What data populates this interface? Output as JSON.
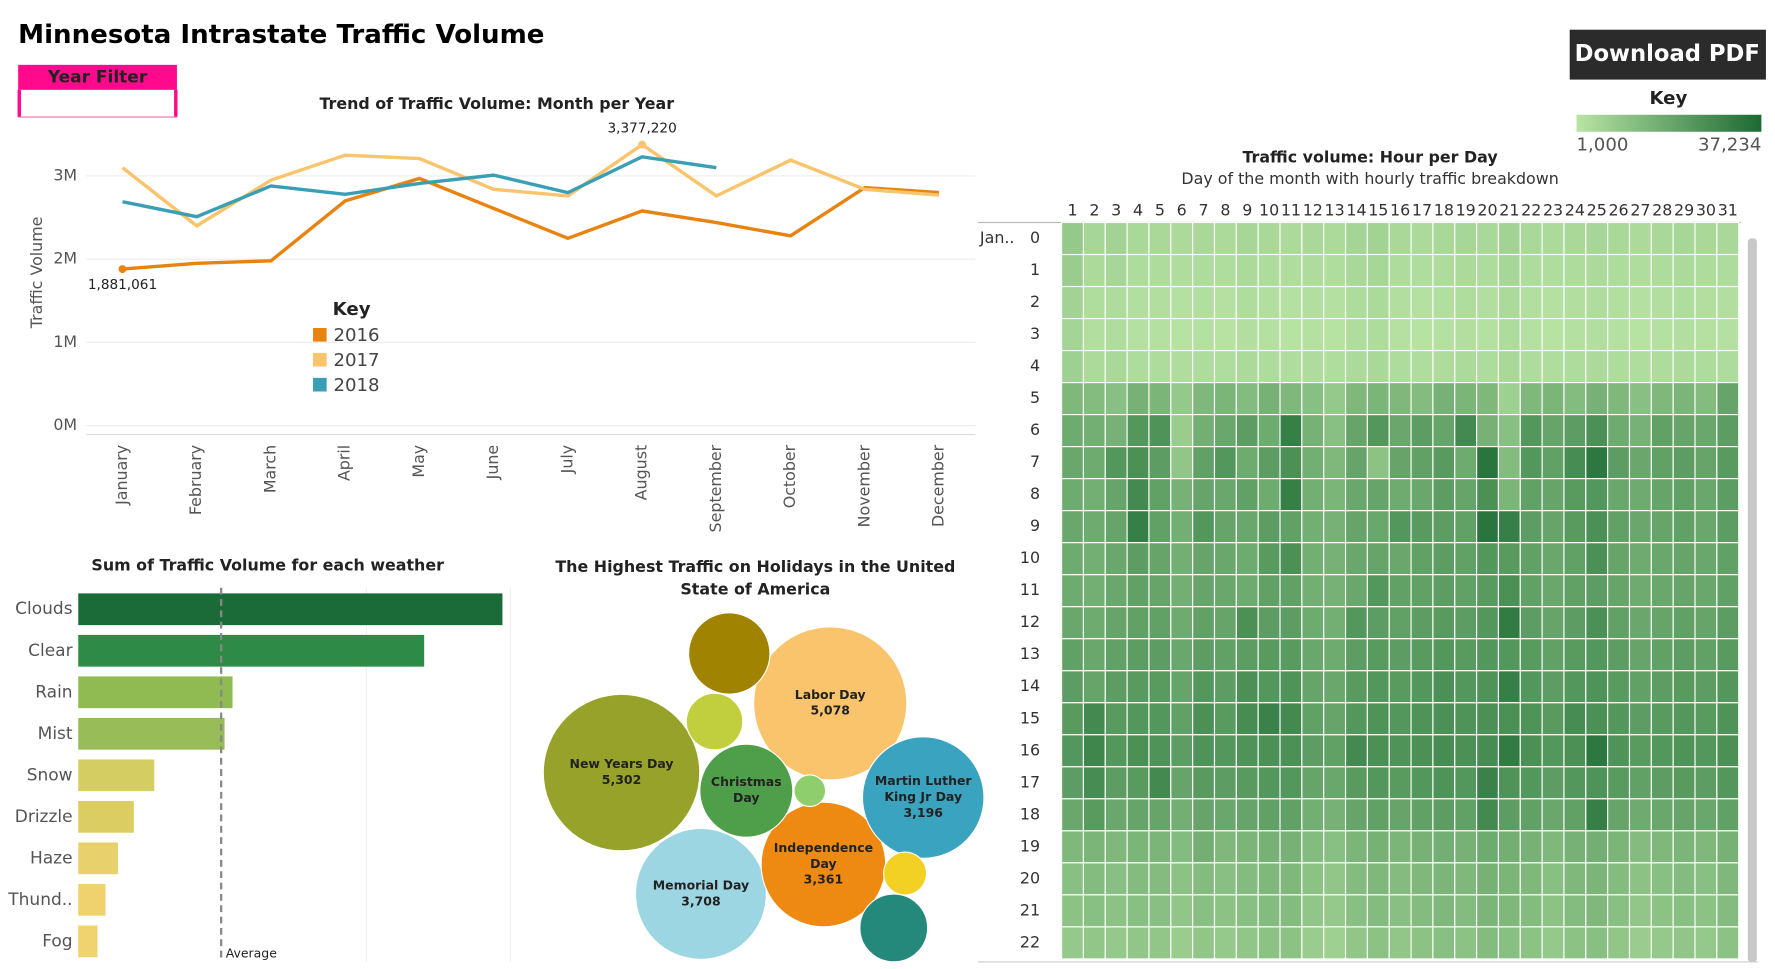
{
  "header": {
    "title": "Minnesota Intrastate Traffic Volume",
    "year_filter": "Year Filter",
    "download": "Download PDF"
  },
  "chart_data": [
    {
      "type": "line",
      "title": "Trend of Traffic Volume: Month per Year",
      "y_label": "Traffic Volume",
      "categories": [
        "January",
        "February",
        "March",
        "April",
        "May",
        "June",
        "July",
        "August",
        "September",
        "October",
        "November",
        "December"
      ],
      "series": [
        {
          "name": "2016",
          "color": "#e8830f",
          "values": [
            1881061,
            1950000,
            1980000,
            2700000,
            2970000,
            2610000,
            2250000,
            2580000,
            2440000,
            2280000,
            2860000,
            2800000
          ],
          "value_labels": [
            "1,881,061",
            null,
            null,
            null,
            null,
            null,
            null,
            null,
            null,
            null,
            null,
            null
          ]
        },
        {
          "name": "2017",
          "color": "#f9c46b",
          "values": [
            3100000,
            2400000,
            2950000,
            3250000,
            3210000,
            2840000,
            2760000,
            3377220,
            2760000,
            3190000,
            2840000,
            2770000
          ],
          "value_labels": [
            null,
            null,
            null,
            null,
            null,
            null,
            null,
            "3,377,220",
            null,
            null,
            null,
            null
          ]
        },
        {
          "name": "2018",
          "color": "#3a9fb5",
          "values": [
            2690000,
            2510000,
            2880000,
            2780000,
            2910000,
            3010000,
            2800000,
            3230000,
            3100000,
            null,
            null,
            null
          ]
        }
      ],
      "ylim": [
        0,
        3500000
      ],
      "yticks": [
        {
          "value": 0,
          "label": "0M"
        },
        {
          "value": 1000000,
          "label": "1M"
        },
        {
          "value": 2000000,
          "label": "2M"
        },
        {
          "value": 3000000,
          "label": "3M"
        }
      ],
      "grid": true,
      "legend_title": "Key"
    },
    {
      "type": "bar",
      "orientation": "horizontal",
      "title": "Sum of Traffic Volume for each weather",
      "categories": [
        "Clouds",
        "Clear",
        "Rain",
        "Mist",
        "Snow",
        "Drizzle",
        "Haze",
        "Thund..",
        "Fog"
      ],
      "values": [
        374,
        305,
        136,
        129,
        67,
        49,
        35,
        24,
        17
      ],
      "colors": [
        "#1a6b37",
        "#2e8b47",
        "#8fbb52",
        "#98bd58",
        "#d4ce62",
        "#dccd62",
        "#e8d06c",
        "#efd26e",
        "#f0d36f"
      ],
      "reference_line": {
        "label": "Average",
        "value": 126
      }
    },
    {
      "type": "bubble",
      "title": "The Highest Traffic on  Holidays in the United State of America",
      "categories": [
        "New Years Day",
        "Labor Day",
        "Memorial Day",
        "Independence Day",
        "Martin Luther King Jr Day",
        "Christmas Day",
        null,
        null,
        null,
        null,
        null
      ],
      "values": [
        5302,
        5078,
        3708,
        3361,
        3196,
        1872,
        1431,
        690,
        216,
        400,
        994
      ],
      "value_labels": [
        "5,302",
        "5,078",
        "3,708",
        "3,361",
        "3,196",
        null,
        null,
        null,
        null,
        null,
        null
      ],
      "colors": [
        "#97a22a",
        "#f9c46b",
        "#9dd6e3",
        "#ee8a12",
        "#3aa3bf",
        "#4f9e4a",
        "#a08300",
        "#c1cf3f",
        "#8fce6c",
        "#f2d024",
        "#24887a"
      ]
    },
    {
      "type": "heatmap",
      "title": "Traffic volume: Hour per Day",
      "subtitle": "Day of the month with hourly traffic breakdown",
      "row_group": "Jan..",
      "legend_title": "Key",
      "color_range": [
        {
          "value": 1000,
          "label": "1,000"
        },
        {
          "value": 37234,
          "label": "37,234"
        }
      ],
      "colors": [
        "#b8e4a4",
        "#1b6a33"
      ],
      "x": [
        1,
        2,
        3,
        4,
        5,
        6,
        7,
        8,
        9,
        10,
        11,
        12,
        13,
        14,
        15,
        16,
        17,
        18,
        19,
        20,
        21,
        22,
        23,
        24,
        25,
        26,
        27,
        28,
        29,
        30,
        31
      ],
      "y": [
        0,
        1,
        2,
        3,
        4,
        5,
        6,
        7,
        8,
        9,
        10,
        11,
        12,
        13,
        14,
        15,
        16,
        17,
        18,
        19,
        20,
        21,
        22
      ],
      "values": [
        [
          9000,
          5000,
          6000,
          4500,
          4500,
          4000,
          4500,
          4000,
          5000,
          4500,
          4000,
          4500,
          4000,
          5500,
          6000,
          4500,
          4000,
          4500,
          5000,
          4500,
          6000,
          4500,
          4000,
          4500,
          5000,
          4500,
          4000,
          4500,
          5000,
          4500,
          4500
        ],
        [
          8000,
          4000,
          5000,
          3500,
          3500,
          3000,
          3500,
          3000,
          4000,
          3500,
          3000,
          3500,
          3000,
          4500,
          5000,
          3500,
          3000,
          3500,
          4000,
          3500,
          5000,
          3500,
          3000,
          3500,
          4000,
          3500,
          3000,
          3500,
          4000,
          3500,
          3500
        ],
        [
          6000,
          3000,
          3500,
          2500,
          2500,
          2000,
          2500,
          2000,
          3000,
          2500,
          2000,
          2500,
          2000,
          3500,
          4000,
          2500,
          2000,
          2500,
          3000,
          2500,
          4000,
          2500,
          2000,
          2500,
          3000,
          2500,
          2000,
          2500,
          3000,
          2500,
          2500
        ],
        [
          5500,
          2500,
          3000,
          2000,
          2000,
          1500,
          2000,
          1500,
          2500,
          2000,
          1500,
          2000,
          1500,
          3000,
          3500,
          2000,
          1500,
          2000,
          2500,
          2000,
          3500,
          2000,
          1500,
          2000,
          2500,
          2000,
          1500,
          2000,
          2500,
          2000,
          2000
        ],
        [
          7000,
          4000,
          4500,
          3500,
          3500,
          3000,
          3500,
          3000,
          4000,
          3500,
          3000,
          3500,
          3000,
          4000,
          4500,
          3500,
          3000,
          3500,
          4000,
          3500,
          4500,
          3500,
          3000,
          3500,
          4000,
          3500,
          3000,
          3500,
          4000,
          3500,
          3500
        ],
        [
          14000,
          13000,
          12000,
          16000,
          15000,
          9000,
          14000,
          15000,
          13000,
          16000,
          14000,
          12000,
          9000,
          14000,
          15000,
          14000,
          13000,
          16000,
          15000,
          14000,
          7000,
          14000,
          15000,
          13000,
          16000,
          14000,
          12000,
          14000,
          15000,
          13000,
          20000
        ],
        [
          18000,
          17000,
          16000,
          24000,
          25000,
          8000,
          17000,
          19000,
          22000,
          18000,
          31000,
          16000,
          12000,
          20000,
          24000,
          19000,
          22000,
          20000,
          28000,
          16000,
          12000,
          24000,
          20000,
          22000,
          26000,
          18000,
          16000,
          21000,
          20000,
          19000,
          22000
        ],
        [
          19000,
          18000,
          24000,
          26000,
          22000,
          10000,
          21000,
          24000,
          18000,
          22000,
          26000,
          17000,
          14000,
          20000,
          11000,
          20000,
          21000,
          23000,
          18000,
          34000,
          13000,
          24000,
          21000,
          27000,
          33000,
          22000,
          19000,
          21000,
          22000,
          20000,
          23000
        ],
        [
          18000,
          17000,
          20000,
          28000,
          21000,
          16000,
          20000,
          19000,
          21000,
          18000,
          31000,
          17000,
          15000,
          19000,
          20000,
          18000,
          19000,
          22000,
          20000,
          26000,
          15000,
          21000,
          20000,
          23000,
          24000,
          19000,
          18000,
          20000,
          21000,
          19000,
          22000
        ],
        [
          19000,
          18000,
          20000,
          31000,
          21000,
          17000,
          24000,
          20000,
          19000,
          22000,
          21000,
          17000,
          16000,
          20000,
          19000,
          24000,
          23000,
          22000,
          21000,
          34000,
          31000,
          22000,
          20000,
          23000,
          26000,
          21000,
          19000,
          20000,
          21000,
          19000,
          22000
        ],
        [
          18000,
          17000,
          19000,
          22000,
          20000,
          17000,
          20000,
          19000,
          18000,
          23000,
          26000,
          17000,
          16000,
          19000,
          20000,
          19000,
          21000,
          22000,
          21000,
          24000,
          23000,
          21000,
          19000,
          21000,
          26000,
          20000,
          18000,
          19000,
          20000,
          19000,
          21000
        ],
        [
          18000,
          17000,
          19000,
          21000,
          20000,
          17000,
          20000,
          19000,
          18000,
          21000,
          21000,
          17000,
          16000,
          19000,
          24000,
          21000,
          21000,
          22000,
          21000,
          23000,
          26000,
          21000,
          19000,
          21000,
          22000,
          20000,
          18000,
          19000,
          20000,
          19000,
          21000
        ],
        [
          19000,
          18000,
          20000,
          21000,
          21000,
          18000,
          21000,
          20000,
          26000,
          22000,
          22000,
          18000,
          17000,
          24000,
          22000,
          21000,
          22000,
          23000,
          22000,
          24000,
          32000,
          22000,
          20000,
          22000,
          26000,
          21000,
          19000,
          20000,
          21000,
          20000,
          22000
        ],
        [
          21000,
          19000,
          21000,
          22000,
          22000,
          19000,
          22000,
          21000,
          22000,
          23000,
          23000,
          19000,
          18000,
          22000,
          23000,
          22000,
          23000,
          24000,
          23000,
          24000,
          24000,
          23000,
          21000,
          23000,
          24000,
          22000,
          20000,
          21000,
          22000,
          21000,
          23000
        ],
        [
          22000,
          20000,
          22000,
          23000,
          23000,
          20000,
          24000,
          22000,
          26000,
          24000,
          25000,
          20000,
          19000,
          23000,
          24000,
          23000,
          24000,
          26000,
          24000,
          25000,
          31000,
          24000,
          22000,
          24000,
          25000,
          23000,
          21000,
          22000,
          23000,
          22000,
          24000
        ],
        [
          23000,
          28000,
          23000,
          24000,
          24000,
          21000,
          26000,
          23000,
          27000,
          30000,
          28000,
          21000,
          20000,
          24000,
          25000,
          24000,
          25000,
          26000,
          25000,
          26000,
          26000,
          25000,
          23000,
          27000,
          26000,
          24000,
          22000,
          23000,
          24000,
          23000,
          25000
        ],
        [
          24000,
          29000,
          24000,
          26000,
          25000,
          22000,
          25000,
          24000,
          25000,
          26000,
          26000,
          22000,
          21000,
          28000,
          26000,
          25000,
          26000,
          27000,
          26000,
          27000,
          32000,
          26000,
          24000,
          26000,
          33000,
          25000,
          23000,
          24000,
          25000,
          24000,
          26000
        ],
        [
          22000,
          27000,
          22000,
          23000,
          28000,
          20000,
          23000,
          22000,
          23000,
          24000,
          24000,
          20000,
          19000,
          23000,
          24000,
          23000,
          24000,
          25000,
          24000,
          30000,
          25000,
          24000,
          22000,
          24000,
          25000,
          23000,
          21000,
          22000,
          23000,
          22000,
          24000
        ],
        [
          19000,
          23000,
          19000,
          20000,
          20000,
          17000,
          20000,
          19000,
          20000,
          21000,
          21000,
          17000,
          16000,
          20000,
          21000,
          20000,
          21000,
          22000,
          21000,
          28000,
          22000,
          21000,
          19000,
          21000,
          31000,
          20000,
          18000,
          19000,
          20000,
          19000,
          21000
        ],
        [
          14000,
          15000,
          14000,
          15000,
          15000,
          13000,
          17000,
          14000,
          15000,
          16000,
          16000,
          13000,
          12000,
          15000,
          16000,
          15000,
          16000,
          17000,
          16000,
          18000,
          17000,
          16000,
          14000,
          16000,
          17000,
          15000,
          13000,
          14000,
          15000,
          14000,
          16000
        ],
        [
          12000,
          13000,
          12000,
          13000,
          13000,
          11000,
          13000,
          12000,
          13000,
          14000,
          14000,
          11000,
          10000,
          13000,
          14000,
          13000,
          14000,
          15000,
          14000,
          16000,
          15000,
          14000,
          12000,
          14000,
          15000,
          13000,
          11000,
          12000,
          13000,
          12000,
          14000
        ],
        [
          11000,
          12000,
          11000,
          12000,
          12000,
          10000,
          12000,
          11000,
          12000,
          13000,
          13000,
          10000,
          9000,
          12000,
          13000,
          12000,
          13000,
          14000,
          13000,
          15000,
          14000,
          13000,
          11000,
          13000,
          14000,
          12000,
          10000,
          11000,
          12000,
          11000,
          13000
        ],
        [
          9000,
          10000,
          9000,
          10000,
          10000,
          8000,
          10000,
          9000,
          10000,
          11000,
          11000,
          8000,
          7000,
          10000,
          11000,
          10000,
          11000,
          12000,
          11000,
          13000,
          12000,
          11000,
          9000,
          11000,
          12000,
          10000,
          8000,
          9000,
          10000,
          9000,
          11000
        ]
      ]
    }
  ]
}
